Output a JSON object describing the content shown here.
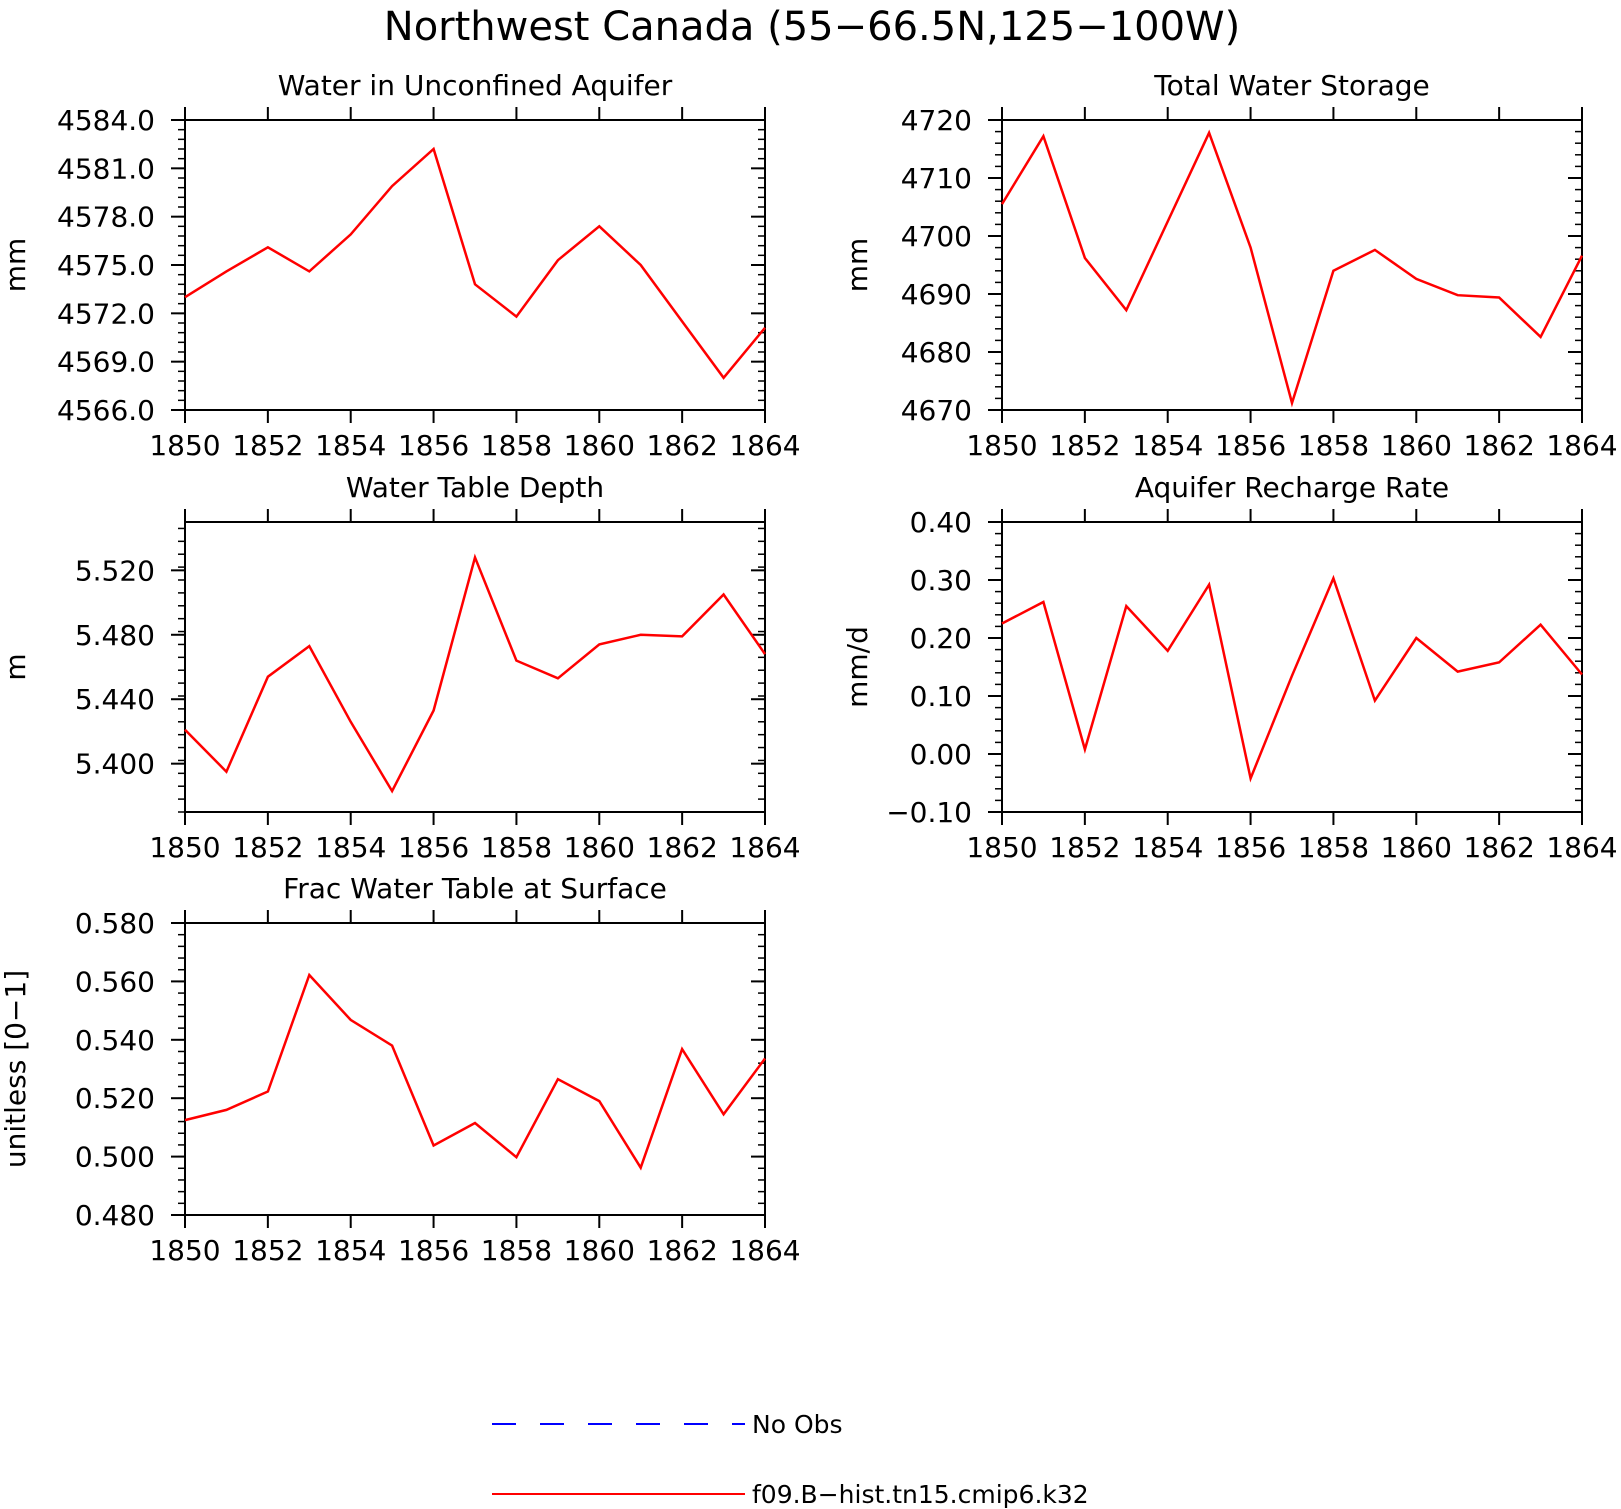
{
  "page": {
    "title": "Northwest Canada (55−66.5N,125−100W)"
  },
  "legend": {
    "items": [
      {
        "label": "No Obs",
        "color": "#0000ff",
        "style": "dashed"
      },
      {
        "label": "f09.B−hist.tn15.cmip6.k32",
        "color": "#ff0000",
        "style": "solid"
      }
    ]
  },
  "chart_data": [
    {
      "type": "line",
      "title": "Water in Unconfined Aquifer",
      "xlabel": "",
      "ylabel": "mm",
      "xlim": [
        1850,
        1864
      ],
      "ylim": [
        4566.0,
        4584.0
      ],
      "xticks": [
        1850,
        1852,
        1854,
        1856,
        1858,
        1860,
        1862,
        1864
      ],
      "xticklabels": [
        "1850",
        "1852",
        "1854",
        "1856",
        "1858",
        "1860",
        "1862",
        "1864"
      ],
      "yticks": [
        4566,
        4569,
        4572,
        4575,
        4578,
        4581,
        4584
      ],
      "yticklabels": [
        "4566.0",
        "4569.0",
        "4572.0",
        "4575.0",
        "4578.0",
        "4581.0",
        "4584.0"
      ],
      "yminor": 0.6,
      "grid": false,
      "x": [
        1850,
        1851,
        1852,
        1853,
        1854,
        1855,
        1856,
        1857,
        1858,
        1859,
        1860,
        1861,
        1862,
        1863,
        1864
      ],
      "series": [
        {
          "name": "f09.B−hist.tn15.cmip6.k32",
          "color": "#ff0000",
          "values": [
            4573.0,
            4574.6,
            4576.1,
            4574.6,
            4576.9,
            4579.9,
            4582.2,
            4573.8,
            4571.8,
            4575.3,
            4577.4,
            4575.0,
            4571.5,
            4568.0,
            4571.1
          ]
        }
      ]
    },
    {
      "type": "line",
      "title": "Total Water Storage",
      "xlabel": "",
      "ylabel": "mm",
      "xlim": [
        1850,
        1864
      ],
      "ylim": [
        4670,
        4720
      ],
      "xticks": [
        1850,
        1852,
        1854,
        1856,
        1858,
        1860,
        1862,
        1864
      ],
      "xticklabels": [
        "1850",
        "1852",
        "1854",
        "1856",
        "1858",
        "1860",
        "1862",
        "1864"
      ],
      "yticks": [
        4670,
        4680,
        4690,
        4700,
        4710,
        4720
      ],
      "yticklabels": [
        "4670",
        "4680",
        "4690",
        "4700",
        "4710",
        "4720"
      ],
      "yminor": 2,
      "grid": false,
      "x": [
        1850,
        1851,
        1852,
        1853,
        1854,
        1855,
        1856,
        1857,
        1858,
        1859,
        1860,
        1861,
        1862,
        1863,
        1864
      ],
      "series": [
        {
          "name": "f09.B−hist.tn15.cmip6.k32",
          "color": "#ff0000",
          "values": [
            4705.5,
            4717.2,
            4696.2,
            4687.2,
            4702.5,
            4717.8,
            4698.0,
            4671.2,
            4694.0,
            4697.6,
            4692.6,
            4689.8,
            4689.4,
            4682.6,
            4696.6
          ]
        }
      ]
    },
    {
      "type": "line",
      "title": "Water Table Depth",
      "xlabel": "",
      "ylabel": "m",
      "xlim": [
        1850,
        1864
      ],
      "ylim": [
        5.37,
        5.55
      ],
      "xticks": [
        1850,
        1852,
        1854,
        1856,
        1858,
        1860,
        1862,
        1864
      ],
      "xticklabels": [
        "1850",
        "1852",
        "1854",
        "1856",
        "1858",
        "1860",
        "1862",
        "1864"
      ],
      "yticks": [
        5.4,
        5.44,
        5.48,
        5.52
      ],
      "yticklabels": [
        "5.400",
        "5.440",
        "5.480",
        "5.520"
      ],
      "yminor": 0.008,
      "grid": false,
      "x": [
        1850,
        1851,
        1852,
        1853,
        1854,
        1855,
        1856,
        1857,
        1858,
        1859,
        1860,
        1861,
        1862,
        1863,
        1864
      ],
      "series": [
        {
          "name": "f09.B−hist.tn15.cmip6.k32",
          "color": "#ff0000",
          "values": [
            5.421,
            5.395,
            5.454,
            5.473,
            5.426,
            5.383,
            5.433,
            5.528,
            5.464,
            5.453,
            5.474,
            5.48,
            5.479,
            5.505,
            5.468
          ]
        }
      ]
    },
    {
      "type": "line",
      "title": "Aquifer Recharge Rate",
      "xlabel": "",
      "ylabel": "mm/d",
      "xlim": [
        1850,
        1864
      ],
      "ylim": [
        -0.1,
        0.4
      ],
      "xticks": [
        1850,
        1852,
        1854,
        1856,
        1858,
        1860,
        1862,
        1864
      ],
      "xticklabels": [
        "1850",
        "1852",
        "1854",
        "1856",
        "1858",
        "1860",
        "1862",
        "1864"
      ],
      "yticks": [
        -0.1,
        0.0,
        0.1,
        0.2,
        0.3,
        0.4
      ],
      "yticklabels": [
        "−0.10",
        "0.00",
        "0.10",
        "0.20",
        "0.30",
        "0.40"
      ],
      "yminor": 0.02,
      "grid": false,
      "x": [
        1850,
        1851,
        1852,
        1853,
        1854,
        1855,
        1856,
        1857,
        1858,
        1859,
        1860,
        1861,
        1862,
        1863,
        1864
      ],
      "series": [
        {
          "name": "f09.B−hist.tn15.cmip6.k32",
          "color": "#ff0000",
          "values": [
            0.225,
            0.262,
            0.008,
            0.255,
            0.178,
            0.292,
            -0.042,
            0.135,
            0.303,
            0.092,
            0.2,
            0.142,
            0.158,
            0.223,
            0.137
          ]
        }
      ]
    },
    {
      "type": "line",
      "title": "Frac Water Table at Surface",
      "xlabel": "",
      "ylabel": "unitless [0−1]",
      "xlim": [
        1850,
        1864
      ],
      "ylim": [
        0.48,
        0.58
      ],
      "xticks": [
        1850,
        1852,
        1854,
        1856,
        1858,
        1860,
        1862,
        1864
      ],
      "xticklabels": [
        "1850",
        "1852",
        "1854",
        "1856",
        "1858",
        "1860",
        "1862",
        "1864"
      ],
      "yticks": [
        0.48,
        0.5,
        0.52,
        0.54,
        0.56,
        0.58
      ],
      "yticklabels": [
        "0.480",
        "0.500",
        "0.520",
        "0.540",
        "0.560",
        "0.580"
      ],
      "yminor": 0.004,
      "grid": false,
      "x": [
        1850,
        1851,
        1852,
        1853,
        1854,
        1855,
        1856,
        1857,
        1858,
        1859,
        1860,
        1861,
        1862,
        1863,
        1864
      ],
      "series": [
        {
          "name": "f09.B−hist.tn15.cmip6.k32",
          "color": "#ff0000",
          "values": [
            0.5125,
            0.516,
            0.5223,
            0.5622,
            0.5468,
            0.538,
            0.5038,
            0.5115,
            0.4998,
            0.5265,
            0.519,
            0.4962,
            0.5368,
            0.5145,
            0.5336
          ]
        }
      ]
    }
  ]
}
